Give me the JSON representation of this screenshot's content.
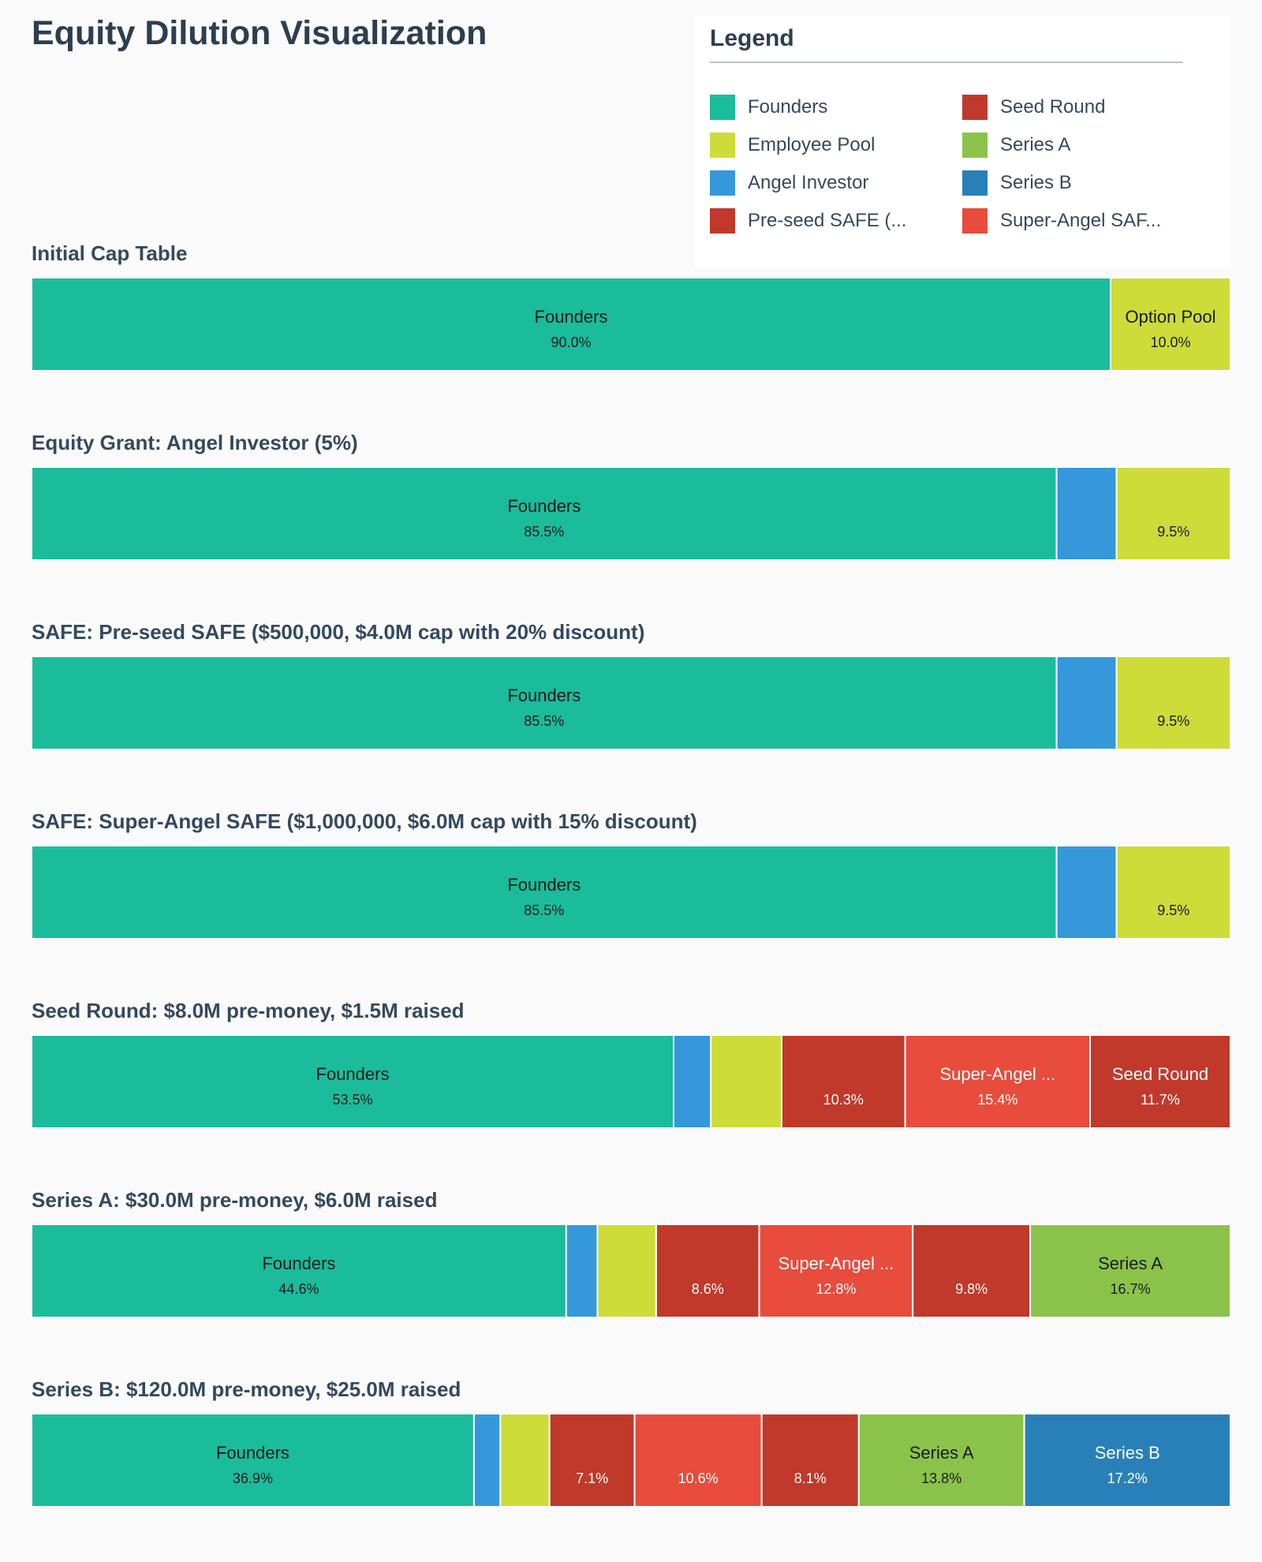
{
  "title": "Equity Dilution Visualization",
  "legend": {
    "title": "Legend",
    "items": [
      {
        "label": "Founders",
        "color": "#1abc9c"
      },
      {
        "label": "Seed Round",
        "color": "#c0392b"
      },
      {
        "label": "Employee Pool",
        "color": "#cddc39"
      },
      {
        "label": "Series A",
        "color": "#8bc34a"
      },
      {
        "label": "Angel Investor",
        "color": "#3498db"
      },
      {
        "label": "Series B",
        "color": "#2980b9"
      },
      {
        "label": "Pre-seed SAFE (...",
        "color": "#c0392b"
      },
      {
        "label": "Super-Angel SAF...",
        "color": "#e74c3c"
      }
    ]
  },
  "chart_data": {
    "type": "bar",
    "orientation": "horizontal-stacked-100",
    "unit": "%",
    "stages": [
      {
        "title": "Initial Cap Table",
        "segments": [
          {
            "label": "Founders",
            "value": 90.0,
            "percent_label": "90.0%",
            "color": "#1abc9c",
            "text_color": "#1a1a1a"
          },
          {
            "label": "Option Pool",
            "value": 10.0,
            "percent_label": "10.0%",
            "color": "#cddc39",
            "text_color": "#1a1a1a"
          }
        ]
      },
      {
        "title": "Equity Grant: Angel Investor (5%)",
        "segments": [
          {
            "label": "Founders",
            "value": 85.5,
            "percent_label": "85.5%",
            "color": "#1abc9c",
            "text_color": "#1a1a1a"
          },
          {
            "label": "",
            "value": 5.0,
            "percent_label": "",
            "color": "#3498db",
            "text_color": "#ffffff"
          },
          {
            "label": "",
            "value": 9.5,
            "percent_label": "9.5%",
            "color": "#cddc39",
            "text_color": "#1a1a1a"
          }
        ]
      },
      {
        "title": "SAFE: Pre-seed SAFE ($500,000, $4.0M cap with 20% discount)",
        "segments": [
          {
            "label": "Founders",
            "value": 85.5,
            "percent_label": "85.5%",
            "color": "#1abc9c",
            "text_color": "#1a1a1a"
          },
          {
            "label": "",
            "value": 5.0,
            "percent_label": "",
            "color": "#3498db",
            "text_color": "#ffffff"
          },
          {
            "label": "",
            "value": 9.5,
            "percent_label": "9.5%",
            "color": "#cddc39",
            "text_color": "#1a1a1a"
          }
        ]
      },
      {
        "title": "SAFE: Super-Angel SAFE ($1,000,000, $6.0M cap with 15% discount)",
        "segments": [
          {
            "label": "Founders",
            "value": 85.5,
            "percent_label": "85.5%",
            "color": "#1abc9c",
            "text_color": "#1a1a1a"
          },
          {
            "label": "",
            "value": 5.0,
            "percent_label": "",
            "color": "#3498db",
            "text_color": "#ffffff"
          },
          {
            "label": "",
            "value": 9.5,
            "percent_label": "9.5%",
            "color": "#cddc39",
            "text_color": "#1a1a1a"
          }
        ]
      },
      {
        "title": "Seed Round: $8.0M pre-money, $1.5M raised",
        "segments": [
          {
            "label": "Founders",
            "value": 53.5,
            "percent_label": "53.5%",
            "color": "#1abc9c",
            "text_color": "#1a1a1a"
          },
          {
            "label": "",
            "value": 3.1,
            "percent_label": "",
            "color": "#3498db",
            "text_color": "#ffffff"
          },
          {
            "label": "",
            "value": 5.9,
            "percent_label": "",
            "color": "#cddc39",
            "text_color": "#1a1a1a"
          },
          {
            "label": "",
            "value": 10.3,
            "percent_label": "10.3%",
            "color": "#c0392b",
            "text_color": "#ffffff"
          },
          {
            "label": "Super-Angel ...",
            "value": 15.4,
            "percent_label": "15.4%",
            "color": "#e74c3c",
            "text_color": "#ffffff"
          },
          {
            "label": "Seed Round",
            "value": 11.7,
            "percent_label": "11.7%",
            "color": "#c0392b",
            "text_color": "#ffffff"
          }
        ]
      },
      {
        "title": "Series A: $30.0M pre-money, $6.0M raised",
        "segments": [
          {
            "label": "Founders",
            "value": 44.6,
            "percent_label": "44.6%",
            "color": "#1abc9c",
            "text_color": "#1a1a1a"
          },
          {
            "label": "",
            "value": 2.6,
            "percent_label": "",
            "color": "#3498db",
            "text_color": "#ffffff"
          },
          {
            "label": "",
            "value": 4.9,
            "percent_label": "",
            "color": "#cddc39",
            "text_color": "#1a1a1a"
          },
          {
            "label": "",
            "value": 8.6,
            "percent_label": "8.6%",
            "color": "#c0392b",
            "text_color": "#ffffff"
          },
          {
            "label": "Super-Angel ...",
            "value": 12.8,
            "percent_label": "12.8%",
            "color": "#e74c3c",
            "text_color": "#ffffff"
          },
          {
            "label": "",
            "value": 9.8,
            "percent_label": "9.8%",
            "color": "#c0392b",
            "text_color": "#ffffff"
          },
          {
            "label": "Series A",
            "value": 16.7,
            "percent_label": "16.7%",
            "color": "#8bc34a",
            "text_color": "#1a1a1a"
          }
        ]
      },
      {
        "title": "Series B: $120.0M pre-money, $25.0M raised",
        "segments": [
          {
            "label": "Founders",
            "value": 36.9,
            "percent_label": "36.9%",
            "color": "#1abc9c",
            "text_color": "#1a1a1a"
          },
          {
            "label": "",
            "value": 2.2,
            "percent_label": "",
            "color": "#3498db",
            "text_color": "#ffffff"
          },
          {
            "label": "",
            "value": 4.1,
            "percent_label": "",
            "color": "#cddc39",
            "text_color": "#1a1a1a"
          },
          {
            "label": "",
            "value": 7.1,
            "percent_label": "7.1%",
            "color": "#c0392b",
            "text_color": "#ffffff"
          },
          {
            "label": "",
            "value": 10.6,
            "percent_label": "10.6%",
            "color": "#e74c3c",
            "text_color": "#ffffff"
          },
          {
            "label": "",
            "value": 8.1,
            "percent_label": "8.1%",
            "color": "#c0392b",
            "text_color": "#ffffff"
          },
          {
            "label": "Series A",
            "value": 13.8,
            "percent_label": "13.8%",
            "color": "#8bc34a",
            "text_color": "#1a1a1a"
          },
          {
            "label": "Series B",
            "value": 17.2,
            "percent_label": "17.2%",
            "color": "#2980b9",
            "text_color": "#ffffff"
          }
        ]
      }
    ]
  }
}
